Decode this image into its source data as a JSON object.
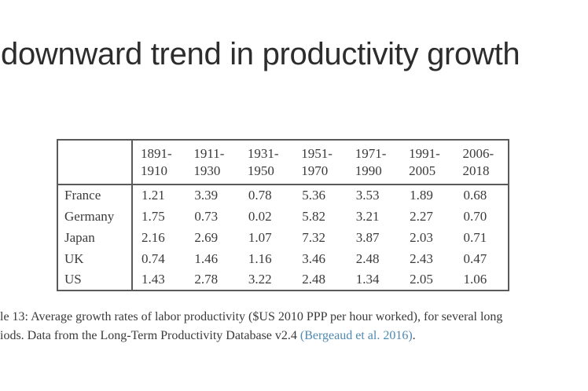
{
  "slide": {
    "title": "downward trend in productivity growth"
  },
  "table": {
    "corner_label": "",
    "periods": [
      {
        "line1": "1891-",
        "line2": "1910"
      },
      {
        "line1": "1911-",
        "line2": "1930"
      },
      {
        "line1": "1931-",
        "line2": "1950"
      },
      {
        "line1": "1951-",
        "line2": "1970"
      },
      {
        "line1": "1971-",
        "line2": "1990"
      },
      {
        "line1": "1991-",
        "line2": "2005"
      },
      {
        "line1": "2006-",
        "line2": "2018"
      }
    ],
    "rows": [
      {
        "country": "France",
        "values": [
          "1.21",
          "3.39",
          "0.78",
          "5.36",
          "3.53",
          "1.89",
          "0.68"
        ]
      },
      {
        "country": "Germany",
        "values": [
          "1.75",
          "0.73",
          "0.02",
          "5.82",
          "3.21",
          "2.27",
          "0.70"
        ]
      },
      {
        "country": "Japan",
        "values": [
          "2.16",
          "2.69",
          "1.07",
          "7.32",
          "3.87",
          "2.03",
          "0.71"
        ]
      },
      {
        "country": "UK",
        "values": [
          "0.74",
          "1.46",
          "1.16",
          "3.46",
          "2.48",
          "2.43",
          "0.47"
        ]
      },
      {
        "country": "US",
        "values": [
          "1.43",
          "2.78",
          "3.22",
          "2.48",
          "1.34",
          "2.05",
          "1.06"
        ]
      }
    ]
  },
  "caption": {
    "line1": "le 13: Average growth rates of labor productivity ($US 2010 PPP per hour worked), for several long",
    "line2_prefix": "iods. Data from the Long-Term Productivity Database v2.4 ",
    "citation": "(Bergeaud et al. 2016)",
    "line2_suffix": "."
  },
  "colors": {
    "title_text": "#2d2d2d",
    "table_border": "#5a5a5a",
    "table_text": "#3b3b3b",
    "caption_text": "#3a3a3a",
    "citation_link": "#4e89b2"
  }
}
